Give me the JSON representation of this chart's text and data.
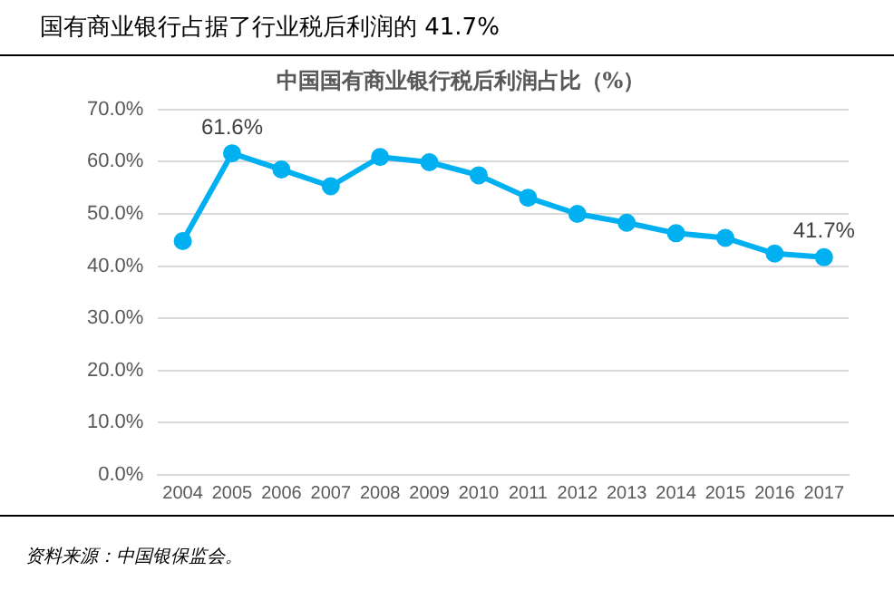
{
  "chart_data": {
    "type": "line",
    "title": "中国国有商业银行税后利润占比（%）",
    "annotations": [
      "国有商业银行占据了行业税后利润的 41.7%",
      "资料来源：中国银保监会。"
    ],
    "categories": [
      "2004",
      "2005",
      "2006",
      "2007",
      "2008",
      "2009",
      "2010",
      "2011",
      "2012",
      "2013",
      "2014",
      "2015",
      "2016",
      "2017"
    ],
    "series": [
      {
        "color": "#00b0f0",
        "values": [
          44.8,
          61.6,
          58.5,
          55.3,
          60.9,
          59.9,
          57.4,
          53.1,
          50.0,
          48.3,
          46.3,
          45.4,
          42.4,
          41.7
        ],
        "value_labels": [
          null,
          "61.6%",
          null,
          null,
          null,
          null,
          null,
          null,
          null,
          null,
          null,
          null,
          null,
          "41.7%"
        ]
      }
    ],
    "ylim": [
      0,
      70
    ],
    "yticks": [
      {
        "value": 0,
        "label": "0.0%"
      },
      {
        "value": 10,
        "label": "10.0%"
      },
      {
        "value": 20,
        "label": "20.0%"
      },
      {
        "value": 30,
        "label": "30.0%"
      },
      {
        "value": 40,
        "label": "40.0%"
      },
      {
        "value": 50,
        "label": "50.0%"
      },
      {
        "value": 60,
        "label": "60.0%"
      },
      {
        "value": 70,
        "label": "70.0%"
      }
    ],
    "grid": "y",
    "marker": "circle",
    "legend": false
  }
}
